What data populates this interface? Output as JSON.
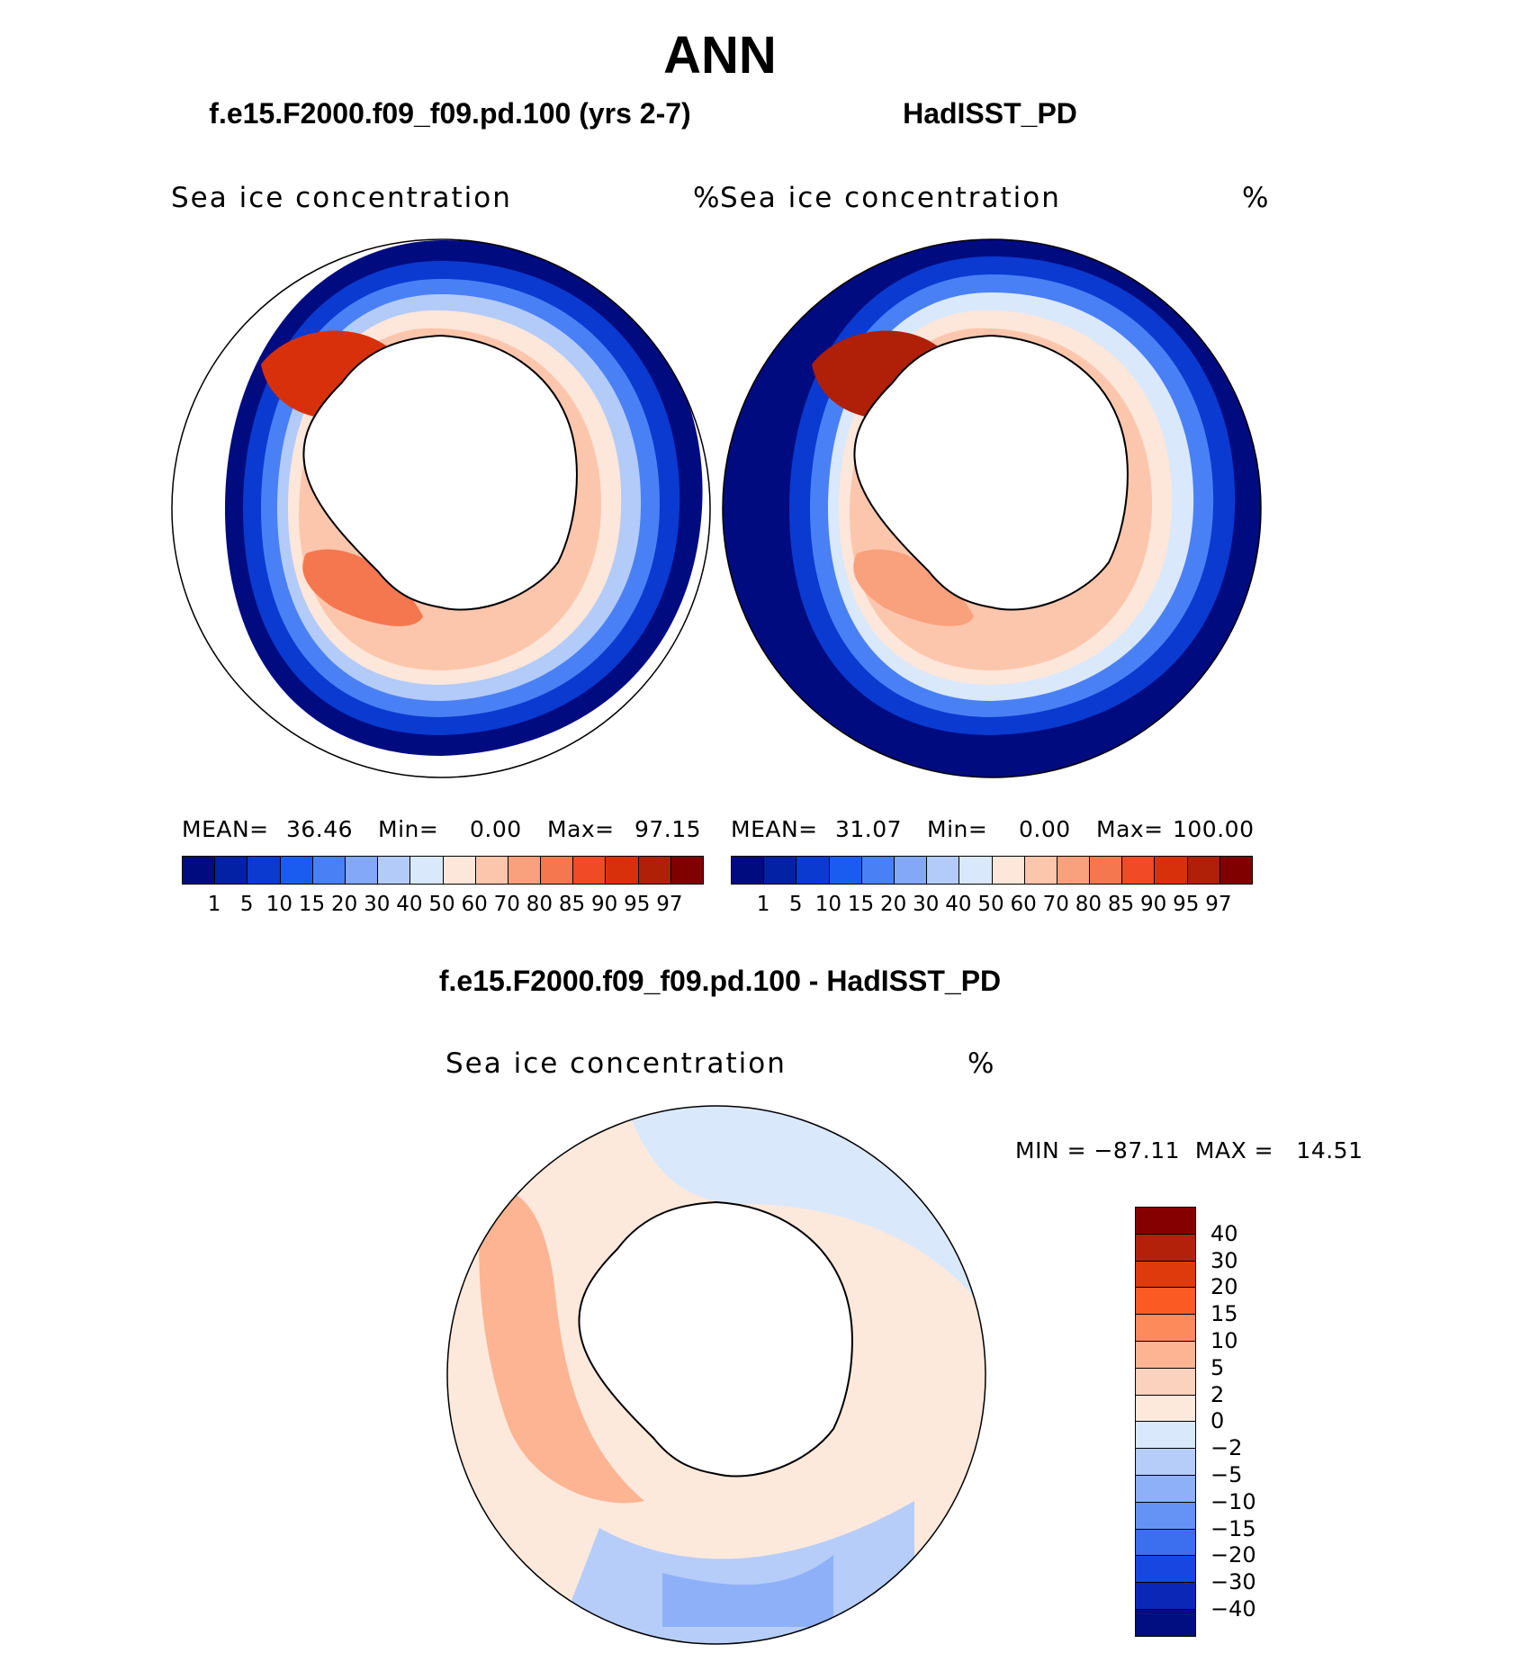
{
  "title": "ANN",
  "panels": [
    {
      "case": "f.e15.F2000.f09_f09.pd.100 (yrs 2-7)",
      "variable": "Sea ice concentration",
      "units": "%",
      "mean_label": "MEAN=",
      "mean": "36.46",
      "min_label": "Min=",
      "min": "0.00",
      "max_label": "Max=",
      "max": "97.15"
    },
    {
      "case": "HadISST_PD",
      "variable": "Sea ice concentration",
      "units": "%",
      "mean_label": "MEAN=",
      "mean": "31.07",
      "min_label": "Min=",
      "min": "0.00",
      "max_label": "Max=",
      "max": "100.00"
    }
  ],
  "diff": {
    "title": "f.e15.F2000.f09_f09.pd.100 - HadISST_PD",
    "variable": "Sea ice concentration",
    "units": "%",
    "minmax": "MIN = −87.11  MAX =   14.51"
  },
  "colorbar_levels": [
    "1",
    "5",
    "10",
    "15",
    "20",
    "30",
    "40",
    "50",
    "60",
    "70",
    "80",
    "85",
    "90",
    "95",
    "97"
  ],
  "colorbar_colors": [
    "#000b80",
    "#0321a5",
    "#0a3ad0",
    "#1a5cf0",
    "#4a80f5",
    "#83a8f7",
    "#b3cbf9",
    "#dae8fc",
    "#fde6da",
    "#fcc6ad",
    "#f9a07d",
    "#f5774f",
    "#f04a26",
    "#d9300c",
    "#b01f08",
    "#800000"
  ],
  "diff_levels": [
    "40",
    "30",
    "20",
    "15",
    "10",
    "5",
    "2",
    "0",
    "−2",
    "−5",
    "−10",
    "−15",
    "−20",
    "−30",
    "−40"
  ],
  "diff_colors": [
    "#850000",
    "#b3210a",
    "#de3a0c",
    "#fc5a23",
    "#fc8a5a",
    "#fcb493",
    "#fbd2bd",
    "#fde9dc",
    "#dae8fc",
    "#b6cdf9",
    "#8eb0f8",
    "#6592f5",
    "#3b6ff0",
    "#1846e0",
    "#0a27b8",
    "#000e82"
  ]
}
